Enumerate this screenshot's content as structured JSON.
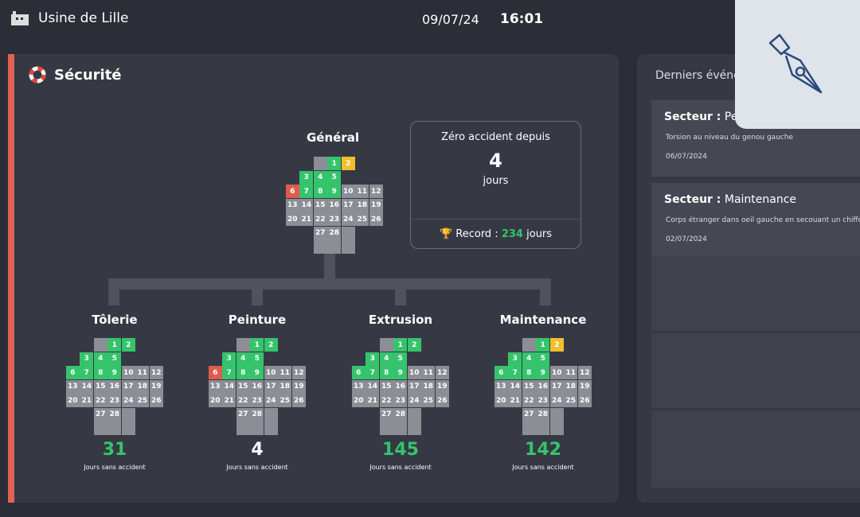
{
  "header": {
    "site": "Usine de Lille",
    "date": "09/07/24",
    "time": "16:01"
  },
  "status_colors": {
    "ok": "#35c46c",
    "incident": "#df5b4e",
    "warning": "#eec12c",
    "none": "#8b8e94",
    "neutral": "#ffffff"
  },
  "safety": {
    "title": "Sécurité",
    "days": [
      1,
      2,
      3,
      4,
      5,
      6,
      7,
      8,
      9,
      10,
      11,
      12,
      13,
      14,
      15,
      16,
      17,
      18,
      19,
      20,
      21,
      22,
      23,
      24,
      25,
      26,
      27,
      28
    ],
    "general": {
      "title": "Général",
      "status": [
        "ok",
        "warning",
        "ok",
        "ok",
        "ok",
        "incident",
        "ok",
        "ok",
        "ok",
        "none",
        "none",
        "none",
        "none",
        "none",
        "none",
        "none",
        "none",
        "none",
        "none",
        "none",
        "none",
        "none",
        "none",
        "none",
        "none",
        "none",
        "none",
        "none"
      ]
    },
    "summary": {
      "headline": "Zéro accident depuis",
      "count": 4,
      "unit": "jours",
      "record_label": "Record :",
      "record_value": 234,
      "record_unit": "jours"
    },
    "sectors": [
      {
        "name": "Tôlerie",
        "count": 31,
        "count_style": "ok",
        "caption": "Jours sans accident",
        "status": [
          "ok",
          "ok",
          "ok",
          "ok",
          "ok",
          "ok",
          "ok",
          "ok",
          "ok",
          "none",
          "none",
          "none",
          "none",
          "none",
          "none",
          "none",
          "none",
          "none",
          "none",
          "none",
          "none",
          "none",
          "none",
          "none",
          "none",
          "none",
          "none",
          "none"
        ]
      },
      {
        "name": "Peinture",
        "count": 4,
        "count_style": "neutral",
        "caption": "Jours sans accident",
        "status": [
          "ok",
          "ok",
          "ok",
          "ok",
          "ok",
          "incident",
          "ok",
          "ok",
          "ok",
          "none",
          "none",
          "none",
          "none",
          "none",
          "none",
          "none",
          "none",
          "none",
          "none",
          "none",
          "none",
          "none",
          "none",
          "none",
          "none",
          "none",
          "none",
          "none"
        ]
      },
      {
        "name": "Extrusion",
        "count": 145,
        "count_style": "ok",
        "caption": "Jours sans accident",
        "status": [
          "ok",
          "ok",
          "ok",
          "ok",
          "ok",
          "ok",
          "ok",
          "ok",
          "ok",
          "none",
          "none",
          "none",
          "none",
          "none",
          "none",
          "none",
          "none",
          "none",
          "none",
          "none",
          "none",
          "none",
          "none",
          "none",
          "none",
          "none",
          "none",
          "none"
        ]
      },
      {
        "name": "Maintenance",
        "count": 142,
        "count_style": "ok",
        "caption": "Jours sans accident",
        "status": [
          "ok",
          "warning",
          "ok",
          "ok",
          "ok",
          "ok",
          "ok",
          "ok",
          "ok",
          "none",
          "none",
          "none",
          "none",
          "none",
          "none",
          "none",
          "none",
          "none",
          "none",
          "none",
          "none",
          "none",
          "none",
          "none",
          "none",
          "none",
          "none",
          "none"
        ]
      }
    ]
  },
  "events": {
    "title": "Derniers événements",
    "items": [
      {
        "sector_label": "Secteur :",
        "sector": "Peinture",
        "description": "Torsion au niveau du genou gauche",
        "date": "06/07/2024"
      },
      {
        "sector_label": "Secteur :",
        "sector": "Maintenance",
        "description": "Corps étranger dans oeil gauche en secouant un chiffon",
        "date": "02/07/2024"
      }
    ]
  }
}
